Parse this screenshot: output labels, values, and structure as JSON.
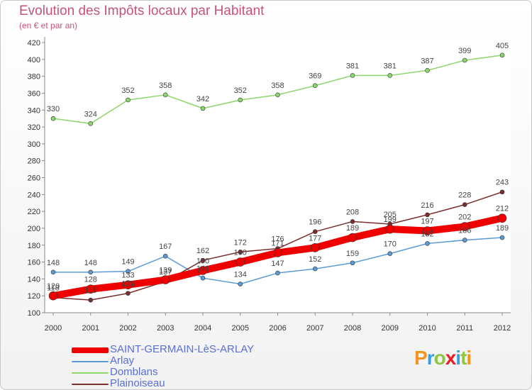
{
  "header": {
    "title": "Evolution des Impôts locaux par Habitant",
    "subtitle": "(en € et par an)"
  },
  "logo": {
    "text": "Proxiti",
    "colors": [
      "#f7941d",
      "#3aa0d9",
      "#8dc63f",
      "#ed1c24",
      "#3aa0d9",
      "#8dc63f",
      "#f7941d"
    ]
  },
  "chart_data": {
    "type": "line",
    "title": "Evolution des Impôts locaux par Habitant",
    "subtitle": "(en € et par an)",
    "x": [
      "2000",
      "2001",
      "2002",
      "2003",
      "2004",
      "2005",
      "2006",
      "2007",
      "2008",
      "2009",
      "2010",
      "2011",
      "2012"
    ],
    "ylim": [
      100,
      420
    ],
    "yticks": [
      100,
      120,
      140,
      160,
      180,
      200,
      220,
      240,
      260,
      280,
      300,
      320,
      340,
      360,
      380,
      400,
      420
    ],
    "grid": false,
    "legend_position": "bottom-left",
    "series": [
      {
        "name": "SAINT-GERMAIN-LèS-ARLAY",
        "color": "#ee0000",
        "width": 10,
        "values": [
          120,
          128,
          133,
          139,
          150,
          160,
          171,
          177,
          189,
          199,
          197,
          202,
          212
        ]
      },
      {
        "name": "Arlay",
        "color": "#5b9bd5",
        "width": 1.5,
        "values": [
          148,
          148,
          149,
          167,
          141,
          134,
          147,
          152,
          159,
          170,
          182,
          186,
          189
        ]
      },
      {
        "name": "Domblans",
        "color": "#8cd66a",
        "width": 1.5,
        "values": [
          330,
          324,
          352,
          358,
          342,
          352,
          358,
          369,
          381,
          381,
          387,
          399,
          405
        ]
      },
      {
        "name": "Plainoiseau",
        "color": "#7a2e2e",
        "width": 1.5,
        "values": [
          118,
          115,
          123,
          137,
          162,
          172,
          176,
          196,
          208,
          205,
          216,
          228,
          243
        ]
      }
    ]
  }
}
